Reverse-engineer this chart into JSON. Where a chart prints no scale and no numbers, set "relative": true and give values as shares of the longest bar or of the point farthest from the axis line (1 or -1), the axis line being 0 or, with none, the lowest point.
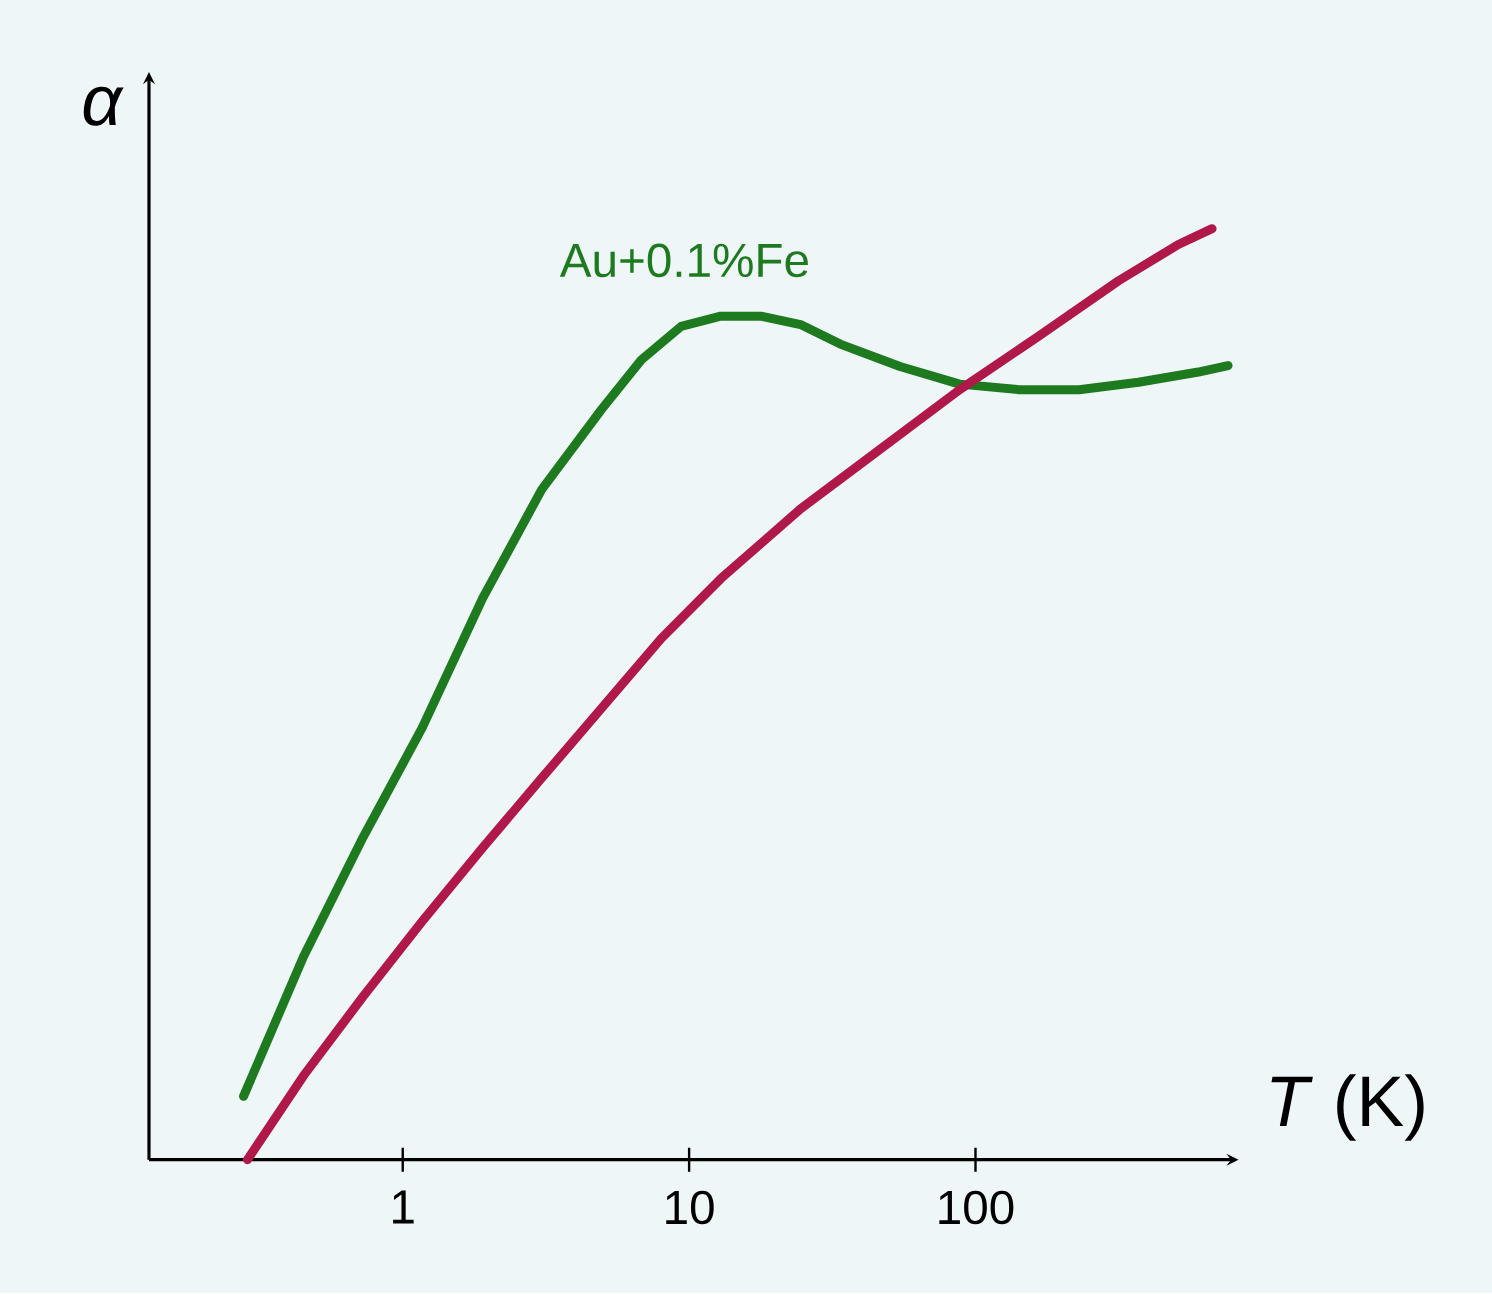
{
  "chart_data": {
    "type": "line",
    "relative": true,
    "xlabel": "*T* (K)",
    "ylabel": "α",
    "log": "x",
    "xlim": [
      0.13,
      780
    ],
    "xticks": [
      1,
      10,
      100
    ],
    "legend": false,
    "grid": false,
    "marker": "none",
    "line_style": "solid",
    "series": [
      {
        "name": "Au+0.1%Fe",
        "color": "#1e7a1e",
        "x": [
          0.278,
          0.45,
          0.726,
          1.17,
          1.9,
          3.06,
          4.95,
          6.81,
          9.38,
          12.9,
          17.8,
          24.5,
          33.7,
          54.5,
          88,
          142,
          230,
          371,
          600,
          762
        ],
        "values": [
          0.068,
          0.218,
          0.346,
          0.464,
          0.603,
          0.72,
          0.806,
          0.859,
          0.895,
          0.906,
          0.906,
          0.897,
          0.876,
          0.852,
          0.833,
          0.827,
          0.827,
          0.835,
          0.846,
          0.853
        ]
      },
      {
        "color": "#b0184a",
        "x": [
          0.287,
          0.45,
          0.726,
          1.17,
          1.9,
          3.06,
          4.95,
          8.0,
          12.9,
          24.5,
          46.4,
          88,
          167,
          316,
          511,
          670
        ],
        "values": [
          0,
          0.09,
          0.175,
          0.256,
          0.335,
          0.41,
          0.485,
          0.56,
          0.624,
          0.699,
          0.763,
          0.827,
          0.885,
          0.944,
          0.983,
          1.0
        ]
      }
    ]
  }
}
